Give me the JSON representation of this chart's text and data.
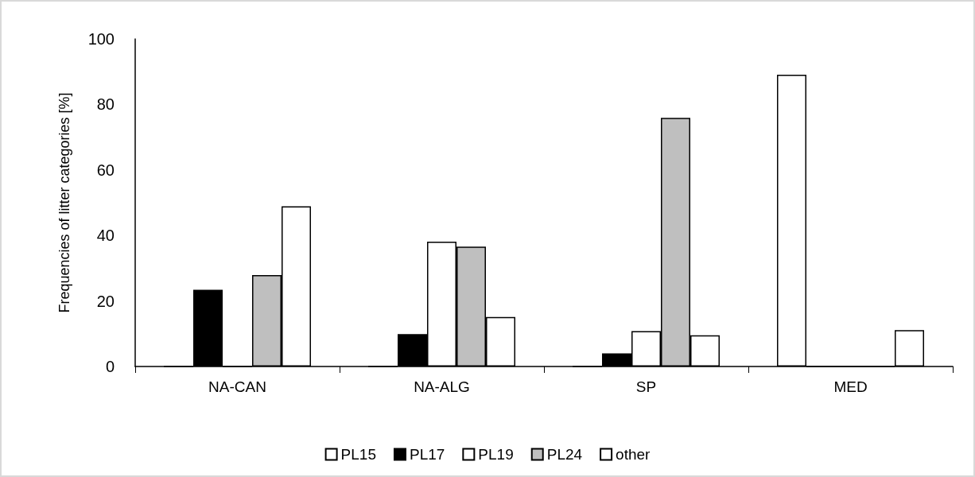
{
  "chart_data": {
    "type": "bar",
    "ylabel": "Frequencies of litter categories [%]",
    "categories": [
      "NA-CAN",
      "NA-ALG",
      "SP",
      "MED"
    ],
    "series": [
      {
        "name": "PL15",
        "color": "#ffffff",
        "values": [
          0,
          0,
          0,
          89.1
        ]
      },
      {
        "name": "PL17",
        "color": "#000000",
        "values": [
          23.4,
          9.9,
          4.0,
          0
        ]
      },
      {
        "name": "PL19",
        "color": "#ffffff",
        "values": [
          0,
          38.1,
          10.8,
          0
        ]
      },
      {
        "name": "PL24",
        "color": "#bfbfbf",
        "values": [
          27.9,
          36.6,
          75.9,
          0
        ]
      },
      {
        "name": "other",
        "color": "#ffffff",
        "values": [
          48.9,
          15.1,
          9.5,
          11.1
        ]
      }
    ],
    "ylim": [
      0,
      100
    ],
    "yticks": [
      0,
      20,
      40,
      60,
      80,
      100
    ],
    "grid": false,
    "legend": "bottom"
  }
}
